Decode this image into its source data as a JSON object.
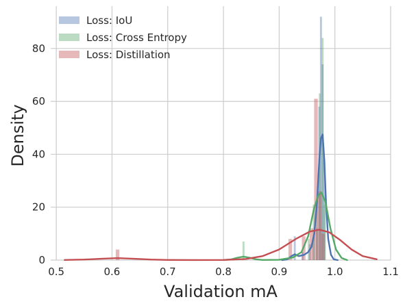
{
  "chart_data": {
    "type": "histogram",
    "title": "",
    "xlabel": "Validation mA",
    "ylabel": "Density",
    "xlim": [
      0.49,
      1.1
    ],
    "ylim": [
      0,
      96
    ],
    "x_ticks": [
      0.5,
      0.6,
      0.7,
      0.8,
      0.9,
      1.0,
      1.1
    ],
    "x_tick_labels": [
      "0.5",
      "0.6",
      "0.7",
      "0.8",
      "0.9",
      "1.0",
      "1.1"
    ],
    "y_ticks": [
      0,
      20,
      40,
      60,
      80
    ],
    "y_tick_labels": [
      "0",
      "20",
      "40",
      "60",
      "80"
    ],
    "grid": true,
    "legend_position": "top-left",
    "series": [
      {
        "name": "Loss: IoU",
        "bar_color": "#4c72b0",
        "line_color": "#4c72b0",
        "bar_opacity": 0.4,
        "bar_width": 0.0035,
        "bars": [
          {
            "x": 0.928,
            "y": 9
          },
          {
            "x": 0.942,
            "y": 3
          },
          {
            "x": 0.955,
            "y": 6
          },
          {
            "x": 0.962,
            "y": 9
          },
          {
            "x": 0.968,
            "y": 12
          },
          {
            "x": 0.972,
            "y": 58
          },
          {
            "x": 0.975,
            "y": 92
          },
          {
            "x": 0.978,
            "y": 74
          },
          {
            "x": 0.981,
            "y": 38
          }
        ],
        "kde": [
          {
            "x": 0.905,
            "y": 0
          },
          {
            "x": 0.915,
            "y": 0.3
          },
          {
            "x": 0.922,
            "y": 1.5
          },
          {
            "x": 0.928,
            "y": 2.2
          },
          {
            "x": 0.935,
            "y": 1.5
          },
          {
            "x": 0.945,
            "y": 2.0
          },
          {
            "x": 0.952,
            "y": 3.0
          },
          {
            "x": 0.958,
            "y": 5.0
          },
          {
            "x": 0.963,
            "y": 10.0
          },
          {
            "x": 0.968,
            "y": 22.0
          },
          {
            "x": 0.972,
            "y": 38.0
          },
          {
            "x": 0.975,
            "y": 46.0
          },
          {
            "x": 0.978,
            "y": 47.5
          },
          {
            "x": 0.981,
            "y": 38.0
          },
          {
            "x": 0.984,
            "y": 22.0
          },
          {
            "x": 0.988,
            "y": 8.0
          },
          {
            "x": 0.993,
            "y": 2.0
          },
          {
            "x": 0.998,
            "y": 0.3
          },
          {
            "x": 1.005,
            "y": 0
          }
        ]
      },
      {
        "name": "Loss: Cross Entropy",
        "bar_color": "#55a868",
        "line_color": "#55a868",
        "bar_opacity": 0.4,
        "bar_width": 0.0035,
        "bars": [
          {
            "x": 0.836,
            "y": 7
          },
          {
            "x": 0.953,
            "y": 8
          },
          {
            "x": 0.962,
            "y": 21
          },
          {
            "x": 0.968,
            "y": 22
          },
          {
            "x": 0.973,
            "y": 63
          },
          {
            "x": 0.978,
            "y": 84
          },
          {
            "x": 0.982,
            "y": 21
          }
        ],
        "kde": [
          {
            "x": 0.8,
            "y": 0
          },
          {
            "x": 0.815,
            "y": 0.3
          },
          {
            "x": 0.825,
            "y": 0.9
          },
          {
            "x": 0.836,
            "y": 1.3
          },
          {
            "x": 0.847,
            "y": 0.9
          },
          {
            "x": 0.858,
            "y": 0.3
          },
          {
            "x": 0.87,
            "y": 0.05
          },
          {
            "x": 0.9,
            "y": 0.1
          },
          {
            "x": 0.925,
            "y": 1.0
          },
          {
            "x": 0.94,
            "y": 3.0
          },
          {
            "x": 0.952,
            "y": 9.0
          },
          {
            "x": 0.962,
            "y": 19.0
          },
          {
            "x": 0.97,
            "y": 24.5
          },
          {
            "x": 0.976,
            "y": 25.5
          },
          {
            "x": 0.983,
            "y": 22.0
          },
          {
            "x": 0.992,
            "y": 12.0
          },
          {
            "x": 1.002,
            "y": 4.0
          },
          {
            "x": 1.012,
            "y": 0.8
          },
          {
            "x": 1.022,
            "y": 0
          }
        ]
      },
      {
        "name": "Loss: Distillation",
        "bar_color": "#c44e52",
        "line_color": "#c44e52",
        "bar_opacity": 0.4,
        "bar_width": 0.0065,
        "bars": [
          {
            "x": 0.61,
            "y": 4
          },
          {
            "x": 0.92,
            "y": 8
          },
          {
            "x": 0.944,
            "y": 9
          },
          {
            "x": 0.958,
            "y": 12
          },
          {
            "x": 0.966,
            "y": 61
          },
          {
            "x": 0.973,
            "y": 26
          },
          {
            "x": 0.979,
            "y": 10
          }
        ],
        "kde": [
          {
            "x": 0.515,
            "y": 0.05
          },
          {
            "x": 0.55,
            "y": 0.2
          },
          {
            "x": 0.58,
            "y": 0.5
          },
          {
            "x": 0.61,
            "y": 0.75
          },
          {
            "x": 0.64,
            "y": 0.5
          },
          {
            "x": 0.67,
            "y": 0.2
          },
          {
            "x": 0.7,
            "y": 0.05
          },
          {
            "x": 0.75,
            "y": 0.02
          },
          {
            "x": 0.8,
            "y": 0.05
          },
          {
            "x": 0.84,
            "y": 0.4
          },
          {
            "x": 0.87,
            "y": 1.5
          },
          {
            "x": 0.9,
            "y": 4.0
          },
          {
            "x": 0.93,
            "y": 8.0
          },
          {
            "x": 0.955,
            "y": 10.8
          },
          {
            "x": 0.972,
            "y": 11.5
          },
          {
            "x": 0.99,
            "y": 10.5
          },
          {
            "x": 1.01,
            "y": 7.5
          },
          {
            "x": 1.03,
            "y": 4.0
          },
          {
            "x": 1.05,
            "y": 1.5
          },
          {
            "x": 1.075,
            "y": 0.3
          }
        ]
      }
    ]
  }
}
